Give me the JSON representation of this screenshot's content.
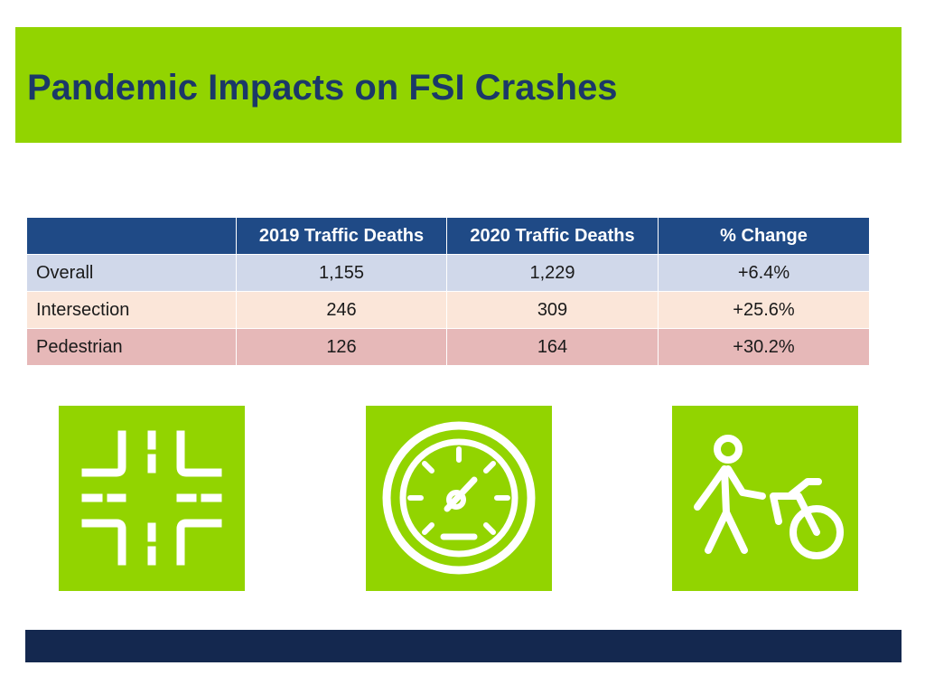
{
  "header": {
    "title": "Pandemic Impacts on FSI Crashes"
  },
  "table": {
    "columns": [
      "2019 Traffic Deaths",
      "2020 Traffic Deaths",
      "% Change"
    ],
    "rows": [
      [
        "Overall",
        "1,155",
        "1,229",
        "+6.4%"
      ],
      [
        "Intersection",
        "246",
        "309",
        "+25.6%"
      ],
      [
        "Pedestrian",
        "126",
        "164",
        "+30.2%"
      ]
    ]
  }
}
